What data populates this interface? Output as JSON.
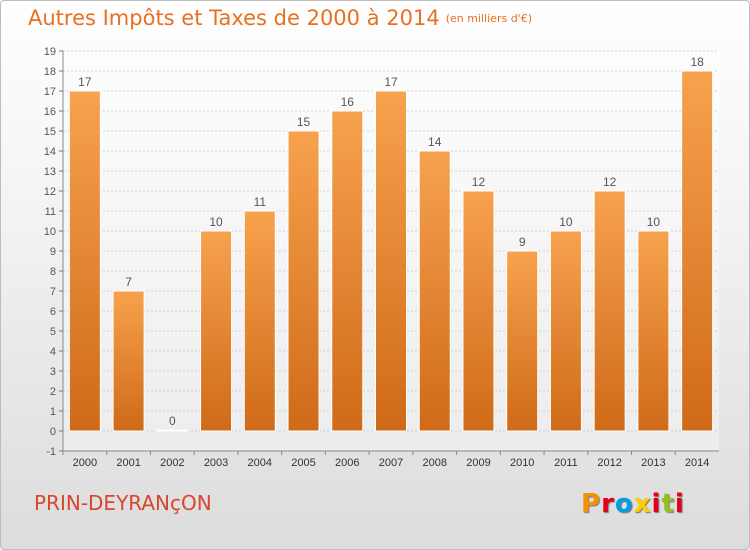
{
  "title": "Autres Impôts et Taxes de 2000 à 2014",
  "title_unit": "(en milliers d'€)",
  "commune": "PRIN-DEYRANçON",
  "logo": {
    "text": "Proxiti",
    "colors": [
      "#f39200",
      "#e2001a",
      "#009fe3",
      "#ffcc00",
      "#e2001a",
      "#95c11f",
      "#e2001a"
    ]
  },
  "colors": {
    "bar_top": "#f7a24e",
    "bar_bottom": "#cf6a18",
    "bar_stroke": "#ffffff",
    "label": "#555555",
    "grid": "#cfcfcf"
  },
  "chart_data": {
    "type": "bar",
    "title": "Autres Impôts et Taxes de 2000 à 2014",
    "ylabel": "",
    "xlabel": "",
    "ylim": [
      -1,
      19
    ],
    "yticks": [
      "-1",
      "0",
      "1",
      "2",
      "3",
      "4",
      "5",
      "6",
      "7",
      "8",
      "9",
      "10",
      "11",
      "12",
      "13",
      "14",
      "15",
      "16",
      "17",
      "18",
      "19"
    ],
    "grid": true,
    "categories": [
      "2000",
      "2001",
      "2002",
      "2003",
      "2004",
      "2005",
      "2006",
      "2007",
      "2008",
      "2009",
      "2010",
      "2011",
      "2012",
      "2013",
      "2014"
    ],
    "values": [
      17,
      7,
      0,
      10,
      11,
      15,
      16,
      17,
      14,
      12,
      9,
      10,
      12,
      10,
      18
    ],
    "labels": [
      "17",
      "7",
      "0",
      "10",
      "11",
      "15",
      "16",
      "17",
      "14",
      "12",
      "9",
      "10",
      "12",
      "10",
      "18"
    ]
  }
}
